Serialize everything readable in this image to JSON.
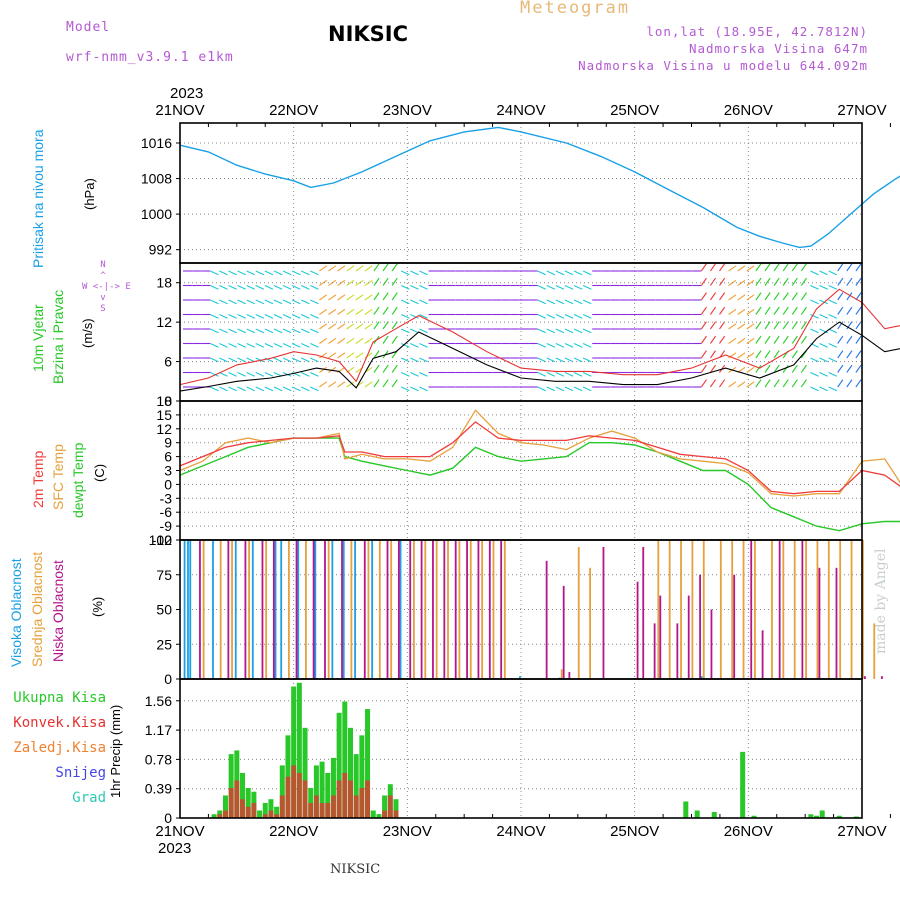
{
  "header": {
    "model_label": "Model",
    "model_name": "wrf-nmm_v3.9.1  e1km",
    "title": "NIKSIC",
    "product": "Meteogram",
    "lonlat": "lon,lat (18.95E, 42.7812N)",
    "elevation": "Nadmorska Visina 647m",
    "model_elevation": "Nadmorska Visina u modelu 644.092m"
  },
  "time_axis": {
    "year": "2023",
    "labels": [
      "21NOV",
      "22NOV",
      "23NOV",
      "24NOV",
      "25NOV",
      "26NOV",
      "27NOV"
    ]
  },
  "watermark": "made by Angel",
  "footer_station": "NIKSIC",
  "colors": {
    "pressure": "#1aa0e6",
    "temp2m": "#f03c3c",
    "sfc_temp": "#e6a03c",
    "dewpt": "#28c828",
    "high_cloud": "#1aa0e6",
    "mid_cloud": "#e6a03c",
    "low_cloud": "#b4148c",
    "total_rain": "#28c828",
    "conv_rain": "#e63232",
    "frozen_rain": "#f08232",
    "snow": "#4646e6",
    "graupel": "#32c8b4",
    "wind_speed": "#000000",
    "wind_gust": "#e63232",
    "model_label": "#b45ad2"
  },
  "chart_data": [
    {
      "type": "line",
      "panel": "pressure",
      "ylabel": "Pritisak na nivou mora",
      "unit": "(hPa)",
      "y_ticks": [
        1016,
        1008,
        1000,
        992
      ],
      "ylim": [
        989,
        1020.5
      ],
      "x": [
        0,
        0.25,
        0.5,
        0.75,
        1.0,
        1.15,
        1.35,
        1.6,
        1.9,
        2.2,
        2.5,
        2.8,
        3.0,
        3.4,
        3.7,
        4.0,
        4.3,
        4.6,
        4.9,
        5.1,
        5.3,
        5.45,
        5.55,
        5.7,
        5.9,
        6.1,
        6.3,
        6.5,
        6.7,
        6.85,
        6.95
      ],
      "series": [
        {
          "values": [
            1015.5,
            1014,
            1011,
            1009,
            1007.5,
            1006,
            1007,
            1009.5,
            1013,
            1016.5,
            1018.5,
            1019.5,
            1018.5,
            1016,
            1013,
            1009.5,
            1005.5,
            1001.5,
            997,
            995,
            993.5,
            992.5,
            992.8,
            995.5,
            1000,
            1004.5,
            1008,
            1011,
            1015,
            1018,
            1019.5
          ]
        }
      ]
    },
    {
      "type": "line",
      "panel": "wind",
      "ylabel": [
        "10m Vjetar",
        "Brzina i Pravac"
      ],
      "unit": "(m/s)",
      "compass_hint": [
        "N",
        "^",
        "W <-|-> E",
        "v",
        "S"
      ],
      "y_ticks": [
        18,
        12,
        6,
        0
      ],
      "ylim": [
        0,
        21
      ],
      "x": [
        0,
        0.25,
        0.5,
        0.8,
        1.0,
        1.2,
        1.4,
        1.55,
        1.7,
        1.9,
        2.1,
        2.4,
        2.7,
        3.0,
        3.3,
        3.6,
        3.9,
        4.2,
        4.5,
        4.8,
        5.1,
        5.4,
        5.6,
        5.8,
        6.0,
        6.2,
        6.5,
        6.8,
        7.0
      ],
      "series": [
        {
          "name": "speed",
          "values": [
            1.5,
            2.2,
            3,
            3.5,
            4.2,
            5,
            4.5,
            2,
            6.5,
            7.5,
            10.5,
            8,
            5.5,
            3.5,
            3,
            3,
            2.5,
            2.5,
            3.5,
            5,
            3.5,
            5.5,
            9.5,
            12,
            10,
            7.5,
            8.5,
            7,
            4
          ]
        },
        {
          "name": "gust",
          "values": [
            2.5,
            3.5,
            5.5,
            6.5,
            7.5,
            7,
            6,
            3,
            9,
            11,
            13,
            10.5,
            7.5,
            5,
            4.5,
            4.5,
            4,
            4,
            5,
            7,
            5,
            8,
            14,
            17,
            15,
            11,
            12,
            10,
            6
          ]
        }
      ],
      "barbs_hue": [
        "violet",
        "cyan",
        "cyan",
        "cyan",
        "cyan",
        "orange",
        "yellow",
        "green",
        "cyan",
        "violet",
        "violet",
        "violet",
        "violet",
        "cyan",
        "cyan",
        "violet",
        "violet",
        "violet",
        "violet",
        "red",
        "orange",
        "green",
        "green",
        "cyan",
        "blue"
      ]
    },
    {
      "type": "line",
      "panel": "temperature",
      "ylabel": [
        "2m Temp",
        "SFC Temp",
        "dewpt Temp"
      ],
      "unit": "(C)",
      "y_ticks": [
        18,
        15,
        12,
        9,
        6,
        3,
        0,
        -3,
        -6,
        -9,
        -12
      ],
      "ylim": [
        -12,
        18
      ],
      "x": [
        0,
        0.2,
        0.4,
        0.6,
        0.8,
        1.0,
        1.2,
        1.4,
        1.45,
        1.6,
        1.8,
        2.0,
        2.2,
        2.4,
        2.6,
        2.8,
        3.0,
        3.2,
        3.4,
        3.6,
        3.8,
        4.0,
        4.2,
        4.4,
        4.6,
        4.8,
        5.0,
        5.2,
        5.4,
        5.6,
        5.8,
        6.0,
        6.2,
        6.4,
        6.6,
        6.8,
        6.95
      ],
      "series": [
        {
          "name": "2m Temp",
          "values": [
            4,
            6,
            8,
            9,
            9.5,
            10,
            10,
            10.5,
            7,
            7,
            6,
            6,
            6,
            9,
            13.5,
            10,
            9.5,
            9.5,
            9.5,
            10.5,
            10,
            9.5,
            8,
            6.5,
            6,
            5.5,
            3,
            -1.5,
            -2,
            -1.5,
            -1.5,
            3,
            2,
            -1.5,
            -2,
            -2.5,
            -2.5
          ]
        },
        {
          "name": "SFC Temp",
          "values": [
            3,
            5,
            9,
            10,
            9,
            10,
            10,
            11,
            5.5,
            6.5,
            5.5,
            5.5,
            5,
            8,
            16,
            11,
            9,
            8.5,
            7.5,
            10,
            11.5,
            10,
            7,
            5.5,
            5,
            4.5,
            2.5,
            -2,
            -2.5,
            -2,
            -2,
            5,
            5.5,
            -2,
            -2.5,
            -3,
            -3
          ]
        },
        {
          "name": "dewpt Temp",
          "values": [
            2,
            4,
            6,
            8,
            9,
            10,
            10,
            10,
            6,
            5,
            4,
            3,
            2,
            3.5,
            8,
            6,
            5,
            5.5,
            6,
            9,
            9,
            8.5,
            7,
            5,
            3,
            3,
            0,
            -5,
            -7,
            -9,
            -10,
            -8.5,
            -8,
            -8,
            -8,
            -8,
            -7.5
          ]
        }
      ]
    },
    {
      "type": "bar",
      "panel": "cloud",
      "ylabel": [
        "Visoka Oblacnost",
        "Srednja Oblacnost",
        "Niska Oblacnost"
      ],
      "unit": "(%)",
      "y_ticks": [
        100,
        75,
        50,
        25,
        0
      ],
      "ylim": [
        0,
        100
      ],
      "series": [
        {
          "name": "high",
          "x": [
            0.05,
            0.08,
            0.1,
            0.3,
            0.5,
            0.65,
            0.85,
            0.9,
            1.05,
            1.2,
            1.35,
            1.45,
            1.55,
            1.7,
            1.95,
            3.0,
            3.35,
            4.6
          ],
          "values": [
            100,
            100,
            100,
            100,
            100,
            100,
            100,
            100,
            100,
            100,
            100,
            100,
            100,
            100,
            100,
            2,
            1,
            2
          ]
        },
        {
          "name": "mid",
          "x": [
            0.2,
            0.35,
            0.45,
            0.6,
            0.75,
            0.95,
            1.1,
            1.3,
            1.5,
            1.65,
            1.75,
            1.85,
            2.05,
            2.15,
            2.25,
            2.35,
            2.45,
            2.55,
            2.65,
            2.75,
            2.85,
            3.35,
            3.5,
            3.6,
            4.2,
            4.3,
            4.4,
            4.5,
            4.6,
            4.75,
            4.85,
            4.95,
            5.05,
            5.2,
            5.3,
            5.4,
            5.5,
            5.6,
            5.7,
            5.8,
            5.9,
            6.0,
            6.1
          ],
          "values": [
            100,
            100,
            100,
            100,
            100,
            100,
            100,
            100,
            100,
            100,
            100,
            100,
            100,
            100,
            100,
            100,
            100,
            100,
            100,
            100,
            100,
            7,
            95,
            80,
            100,
            100,
            100,
            100,
            100,
            100,
            100,
            100,
            100,
            100,
            100,
            100,
            100,
            100,
            100,
            100,
            100,
            100,
            40
          ]
        },
        {
          "name": "low",
          "x": [
            0.15,
            0.4,
            0.55,
            0.7,
            0.8,
            1.0,
            1.15,
            1.25,
            1.4,
            1.6,
            1.8,
            1.9,
            2.0,
            2.1,
            2.2,
            2.3,
            2.4,
            2.5,
            2.6,
            2.7,
            2.8,
            3.2,
            3.35,
            3.4,
            3.7,
            4.0,
            4.05,
            4.15,
            4.2,
            4.35,
            4.45,
            4.55,
            4.65,
            4.85,
            5.0,
            5.1,
            5.25,
            5.45,
            5.6,
            5.75,
            6.0,
            6.15
          ],
          "values": [
            100,
            100,
            100,
            100,
            100,
            100,
            100,
            100,
            100,
            100,
            100,
            100,
            100,
            100,
            100,
            100,
            100,
            100,
            100,
            100,
            100,
            85,
            67,
            5,
            95,
            70,
            95,
            40,
            60,
            40,
            60,
            75,
            50,
            75,
            100,
            35,
            100,
            100,
            80,
            80,
            2,
            2
          ]
        }
      ]
    },
    {
      "type": "bar",
      "panel": "precipitation",
      "ylabel": "1hr Precip (mm)",
      "legend": [
        "Ukupna Kisa",
        "Konvek.Kisa",
        "Zaledj.Kisa",
        "Snijeg",
        "Grad"
      ],
      "y_ticks": [
        1.56,
        1.17,
        0.78,
        0.39,
        0
      ],
      "ylim": [
        0,
        1.85
      ],
      "x": [
        0.3,
        0.35,
        0.4,
        0.45,
        0.5,
        0.55,
        0.6,
        0.65,
        0.7,
        0.75,
        0.8,
        0.85,
        0.9,
        0.95,
        1.0,
        1.05,
        1.1,
        1.15,
        1.2,
        1.25,
        1.3,
        1.35,
        1.4,
        1.45,
        1.5,
        1.55,
        1.6,
        1.65,
        1.7,
        1.75,
        1.8,
        1.85,
        1.9,
        4.45,
        4.55,
        4.7,
        4.95,
        5.05,
        5.55,
        5.6,
        5.65,
        5.8,
        5.95
      ],
      "series": [
        {
          "name": "Ukupna Kisa",
          "values": [
            0.05,
            0.1,
            0.3,
            0.85,
            0.9,
            0.6,
            0.4,
            0.35,
            0.1,
            0.2,
            0.25,
            0.15,
            0.7,
            1.1,
            1.75,
            1.8,
            1.2,
            0.4,
            0.7,
            0.75,
            0.6,
            0.8,
            1.4,
            1.55,
            1.2,
            0.85,
            1.1,
            1.45,
            0.1,
            0.05,
            0.3,
            0.45,
            0.25,
            0.22,
            0.1,
            0.08,
            0.88,
            0.03,
            0.05,
            0.03,
            0.1,
            0.03,
            0.02
          ]
        },
        {
          "name": "Konvek.Kisa",
          "values": [
            0,
            0.05,
            0.1,
            0.4,
            0.5,
            0.25,
            0.15,
            0.2,
            0,
            0.05,
            0.1,
            0.05,
            0.3,
            0.55,
            0.7,
            0.6,
            0.5,
            0.2,
            0.3,
            0.2,
            0.2,
            0.3,
            0.5,
            0.6,
            0.5,
            0.3,
            0.4,
            0.5,
            0,
            0,
            0.1,
            0.3,
            0.1,
            0,
            0,
            0,
            0,
            0,
            0,
            0,
            0,
            0,
            0
          ]
        }
      ]
    }
  ]
}
